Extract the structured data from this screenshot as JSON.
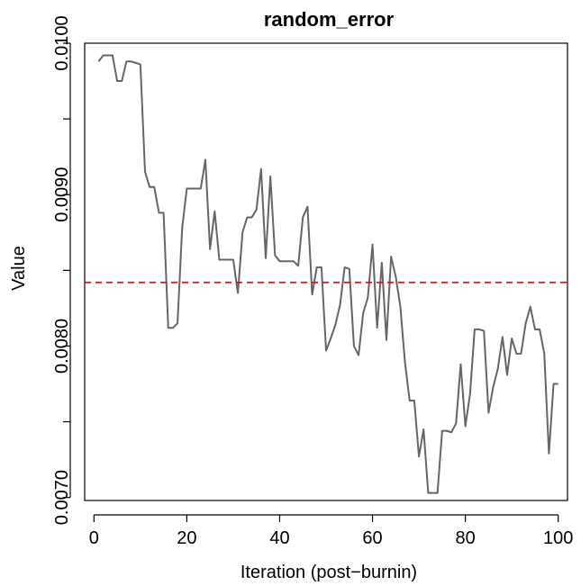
{
  "chart_data": {
    "type": "line",
    "title": "random_error",
    "xlabel": "Iteration (post−burnin)",
    "ylabel": "Value",
    "xlim": [
      -2,
      102
    ],
    "ylim": [
      0.00698,
      0.01
    ],
    "x_ticks": [
      0,
      20,
      40,
      60,
      80,
      100
    ],
    "x_tick_labels": [
      "0",
      "20",
      "40",
      "60",
      "80",
      "100"
    ],
    "y_ticks": [
      0.007,
      0.0075,
      0.008,
      0.0085,
      0.009,
      0.0095,
      0.01
    ],
    "y_tick_labels": [
      "0.0070",
      "",
      "0.0080",
      "",
      "0.0090",
      "",
      "0.0100"
    ],
    "grid": false,
    "series": [
      {
        "color": "#666666",
        "x": [
          1,
          2,
          3,
          4,
          5,
          6,
          7,
          8,
          9,
          10,
          11,
          12,
          13,
          14,
          15,
          16,
          17,
          18,
          19,
          20,
          21,
          22,
          23,
          24,
          25,
          26,
          27,
          28,
          29,
          30,
          31,
          32,
          33,
          34,
          35,
          36,
          37,
          38,
          39,
          40,
          41,
          42,
          43,
          44,
          45,
          46,
          47,
          48,
          49,
          50,
          51,
          52,
          53,
          54,
          55,
          56,
          57,
          58,
          59,
          60,
          61,
          62,
          63,
          64,
          65,
          66,
          67,
          68,
          69,
          70,
          71,
          72,
          73,
          74,
          75,
          76,
          77,
          78,
          79,
          80,
          81,
          82,
          83,
          84,
          85,
          86,
          87,
          88,
          89,
          90,
          91,
          92,
          93,
          94,
          95,
          96,
          97,
          98,
          99,
          100
        ],
        "values": [
          0.00988,
          0.00992,
          0.00992,
          0.00992,
          0.00975,
          0.00975,
          0.00988,
          0.00988,
          0.00987,
          0.00986,
          0.00915,
          0.00905,
          0.00905,
          0.00888,
          0.00888,
          0.00812,
          0.00812,
          0.00815,
          0.00878,
          0.00904,
          0.00904,
          0.00904,
          0.00904,
          0.00923,
          0.00864,
          0.00889,
          0.00857,
          0.00857,
          0.00857,
          0.00857,
          0.00835,
          0.00875,
          0.00885,
          0.00885,
          0.0089,
          0.00917,
          0.00858,
          0.00912,
          0.0086,
          0.00856,
          0.00856,
          0.00856,
          0.00856,
          0.00853,
          0.00885,
          0.00892,
          0.00834,
          0.00852,
          0.00852,
          0.00797,
          0.00805,
          0.00814,
          0.00827,
          0.00852,
          0.00851,
          0.008,
          0.00794,
          0.00822,
          0.00832,
          0.00867,
          0.00812,
          0.00855,
          0.00804,
          0.00859,
          0.00846,
          0.00826,
          0.00789,
          0.00764,
          0.00764,
          0.00727,
          0.00745,
          0.00703,
          0.00703,
          0.00703,
          0.00744,
          0.00744,
          0.00743,
          0.00749,
          0.00788,
          0.00747,
          0.00768,
          0.00811,
          0.00811,
          0.0081,
          0.00756,
          0.00773,
          0.00785,
          0.00806,
          0.00781,
          0.00805,
          0.00795,
          0.00795,
          0.00815,
          0.00826,
          0.00811,
          0.00811,
          0.00795,
          0.00729,
          0.00775,
          0.00775
        ]
      }
    ],
    "reference_line": {
      "value": 0.00842,
      "color": "#ff0000",
      "style": "dashed"
    }
  }
}
